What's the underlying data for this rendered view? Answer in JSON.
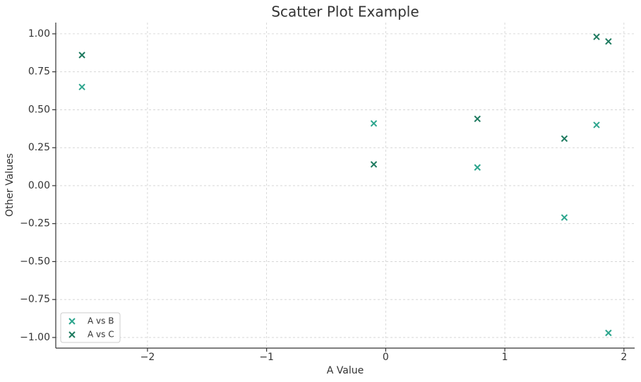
{
  "chart_data": {
    "type": "scatter",
    "title": "Scatter Plot Example",
    "x_label": "A Value",
    "y_label": "Other Values",
    "xlim": [
      -2.77,
      2.09
    ],
    "ylim": [
      -1.07,
      1.074
    ],
    "xticks": [
      {
        "value": -2,
        "label": "−2"
      },
      {
        "value": -1,
        "label": "−1"
      },
      0,
      1,
      2
    ],
    "yticks": [
      {
        "value": -1,
        "label": "−1.00"
      },
      {
        "value": -0.75,
        "label": "−0.75"
      },
      {
        "value": -0.5,
        "label": "−0.50"
      },
      {
        "value": -0.25,
        "label": "−0.25"
      },
      {
        "value": 0,
        "label": "0.00"
      },
      {
        "value": 0.25,
        "label": "0.25"
      },
      {
        "value": 0.5,
        "label": "0.50"
      },
      {
        "value": 0.75,
        "label": "0.75"
      },
      {
        "value": 1,
        "label": "1.00"
      }
    ],
    "grid": true,
    "legend": "lower left",
    "series": [
      {
        "name": "A vs B",
        "color": "#2ca58d",
        "x": [
          -2.55,
          -0.1,
          0.77,
          1.5,
          1.77,
          1.87
        ],
        "values": [
          0.65,
          0.41,
          0.12,
          -0.21,
          0.4,
          -0.97
        ]
      },
      {
        "name": "A vs C",
        "color": "#1d7a5f",
        "x": [
          -2.55,
          -0.1,
          0.77,
          1.5,
          1.77,
          1.87
        ],
        "values": [
          0.86,
          0.14,
          0.44,
          0.31,
          0.98,
          0.95
        ]
      }
    ]
  }
}
